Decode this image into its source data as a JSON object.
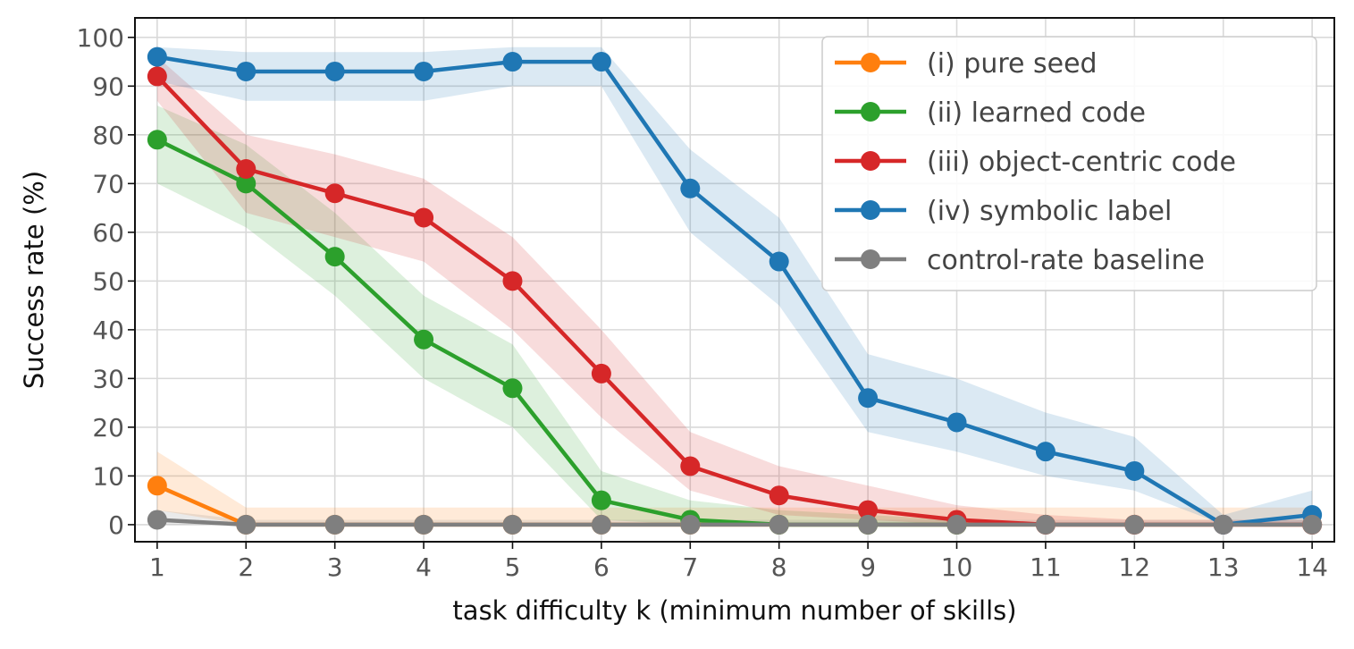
{
  "chart_data": {
    "type": "line",
    "xlabel": "task difficulty k (minimum number of skills)",
    "ylabel": "Success rate (%)",
    "x": [
      1,
      2,
      3,
      4,
      5,
      6,
      7,
      8,
      9,
      10,
      11,
      12,
      13,
      14
    ],
    "xlim": [
      0.75,
      14.25
    ],
    "ylim": [
      -3.5,
      104
    ],
    "xticks": [
      1,
      2,
      3,
      4,
      5,
      6,
      7,
      8,
      9,
      10,
      11,
      12,
      13,
      14
    ],
    "yticks": [
      0,
      10,
      20,
      30,
      40,
      50,
      60,
      70,
      80,
      90,
      100
    ],
    "grid": true,
    "legend_position": "top-right",
    "series": [
      {
        "name": "(i) pure seed",
        "color": "#ff7f0e",
        "values": [
          8,
          0,
          0,
          0,
          0,
          0,
          0,
          0,
          0,
          0,
          0,
          0,
          0,
          0
        ],
        "lower": [
          3,
          0,
          0,
          0,
          0,
          0,
          0,
          0,
          0,
          0,
          0,
          0,
          0,
          0
        ],
        "upper": [
          15,
          3.5,
          3.5,
          3.5,
          3.5,
          3.5,
          3.5,
          3.5,
          3.5,
          3.5,
          3.5,
          3.5,
          3.5,
          3.5
        ]
      },
      {
        "name": "(ii) learned code",
        "color": "#2ca02c",
        "values": [
          79,
          70,
          55,
          38,
          28,
          5,
          1,
          0,
          0,
          0,
          null,
          null,
          null,
          null
        ],
        "lower": [
          70,
          61,
          47,
          30,
          20,
          1,
          0,
          0,
          0,
          0,
          null,
          null,
          null,
          null
        ],
        "upper": [
          86,
          78,
          64,
          47,
          37,
          11,
          5,
          3,
          2,
          1,
          null,
          null,
          null,
          null
        ]
      },
      {
        "name": "(iii) object-centric code",
        "color": "#d62728",
        "values": [
          92,
          73,
          68,
          63,
          50,
          31,
          12,
          6,
          3,
          1,
          0,
          0,
          0,
          0
        ],
        "lower": [
          87,
          64,
          59,
          54,
          40,
          22,
          7,
          2,
          1,
          0,
          0,
          0,
          0,
          0
        ],
        "upper": [
          96,
          80,
          76,
          71,
          59,
          40,
          19,
          12,
          8,
          4,
          2,
          1,
          1,
          1
        ]
      },
      {
        "name": "(iv) symbolic label",
        "color": "#1f77b4",
        "values": [
          96,
          93,
          93,
          93,
          95,
          95,
          69,
          54,
          26,
          21,
          15,
          11,
          0,
          2
        ],
        "lower": [
          91,
          87,
          87,
          87,
          90,
          90,
          60,
          45,
          19,
          15,
          10,
          7,
          0,
          0
        ],
        "upper": [
          98,
          97,
          97,
          97,
          98,
          98,
          77,
          63,
          35,
          30,
          23,
          18,
          2,
          7
        ]
      },
      {
        "name": "control-rate baseline",
        "color": "#7f7f7f",
        "values": [
          1,
          0,
          0,
          0,
          0,
          0,
          0,
          0,
          0,
          0,
          0,
          0,
          0,
          0
        ],
        "lower": [
          0,
          0,
          0,
          0,
          0,
          0,
          0,
          0,
          0,
          0,
          0,
          0,
          0,
          0
        ],
        "upper": [
          3,
          1,
          1,
          1,
          1,
          1,
          1,
          1,
          1,
          1,
          1,
          1,
          1,
          1
        ]
      }
    ]
  }
}
